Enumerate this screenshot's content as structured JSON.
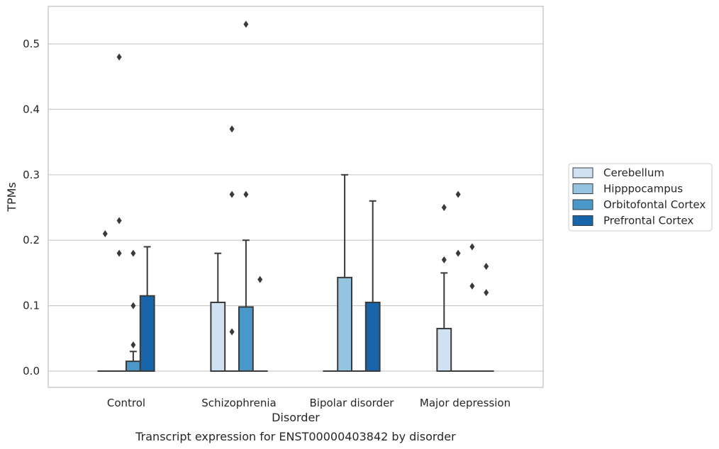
{
  "chart_data": {
    "type": "box",
    "title": "",
    "caption": "Transcript expression for ENST00000403842 by disorder",
    "xlabel": "Disorder",
    "ylabel": "TPMs",
    "ylim": [
      -0.025,
      0.56
    ],
    "yticks": [
      0.0,
      0.1,
      0.2,
      0.3,
      0.4,
      0.5
    ],
    "ytick_labels": [
      "0.0",
      "0.1",
      "0.2",
      "0.3",
      "0.4",
      "0.5"
    ],
    "grid": "horizontal",
    "legend_position": "right",
    "categories": [
      "Control",
      "Schizophrenia",
      "Bipolar disorder",
      "Major depression"
    ],
    "series": [
      {
        "name": "Cerebellum",
        "color": "#d0e1f2",
        "boxes": [
          {
            "q1": 0,
            "median": 0,
            "q3": 0,
            "whisker_low": 0,
            "whisker_high": 0,
            "outliers": [
              0.21
            ]
          },
          {
            "q1": 0,
            "median": 0,
            "q3": 0.105,
            "whisker_low": 0,
            "whisker_high": 0.18,
            "outliers": []
          },
          {
            "q1": 0,
            "median": 0,
            "q3": 0,
            "whisker_low": 0,
            "whisker_high": 0,
            "outliers": []
          },
          {
            "q1": 0,
            "median": 0,
            "q3": 0.065,
            "whisker_low": 0,
            "whisker_high": 0.15,
            "outliers": [
              0.17,
              0.25
            ]
          }
        ]
      },
      {
        "name": "Hipppocampus",
        "color": "#94c4df",
        "boxes": [
          {
            "q1": 0,
            "median": 0,
            "q3": 0,
            "whisker_low": 0,
            "whisker_high": 0,
            "outliers": [
              0.18,
              0.23,
              0.48
            ]
          },
          {
            "q1": 0,
            "median": 0,
            "q3": 0,
            "whisker_low": 0,
            "whisker_high": 0,
            "outliers": [
              0.06,
              0.27,
              0.37
            ]
          },
          {
            "q1": 0,
            "median": 0,
            "q3": 0.143,
            "whisker_low": 0,
            "whisker_high": 0.3,
            "outliers": []
          },
          {
            "q1": 0,
            "median": 0,
            "q3": 0,
            "whisker_low": 0,
            "whisker_high": 0,
            "outliers": [
              0.18,
              0.27
            ]
          }
        ]
      },
      {
        "name": "Orbitofontal Cortex",
        "color": "#4a98c9",
        "boxes": [
          {
            "q1": 0,
            "median": 0,
            "q3": 0.015,
            "whisker_low": 0,
            "whisker_high": 0.03,
            "outliers": [
              0.04,
              0.1,
              0.18
            ]
          },
          {
            "q1": 0,
            "median": 0,
            "q3": 0.098,
            "whisker_low": 0,
            "whisker_high": 0.2,
            "outliers": [
              0.27,
              0.53
            ]
          },
          {
            "q1": 0,
            "median": 0,
            "q3": 0,
            "whisker_low": 0,
            "whisker_high": 0,
            "outliers": []
          },
          {
            "q1": 0,
            "median": 0,
            "q3": 0,
            "whisker_low": 0,
            "whisker_high": 0,
            "outliers": [
              0.13,
              0.19
            ]
          }
        ]
      },
      {
        "name": "Prefrontal Cortex",
        "color": "#1764ab",
        "boxes": [
          {
            "q1": 0,
            "median": 0,
            "q3": 0.115,
            "whisker_low": 0,
            "whisker_high": 0.19,
            "outliers": []
          },
          {
            "q1": 0,
            "median": 0,
            "q3": 0,
            "whisker_low": 0,
            "whisker_high": 0,
            "outliers": [
              0.14
            ]
          },
          {
            "q1": 0,
            "median": 0,
            "q3": 0.105,
            "whisker_low": 0,
            "whisker_high": 0.26,
            "outliers": []
          },
          {
            "q1": 0,
            "median": 0,
            "q3": 0,
            "whisker_low": 0,
            "whisker_high": 0,
            "outliers": [
              0.12,
              0.16
            ]
          }
        ]
      }
    ]
  }
}
